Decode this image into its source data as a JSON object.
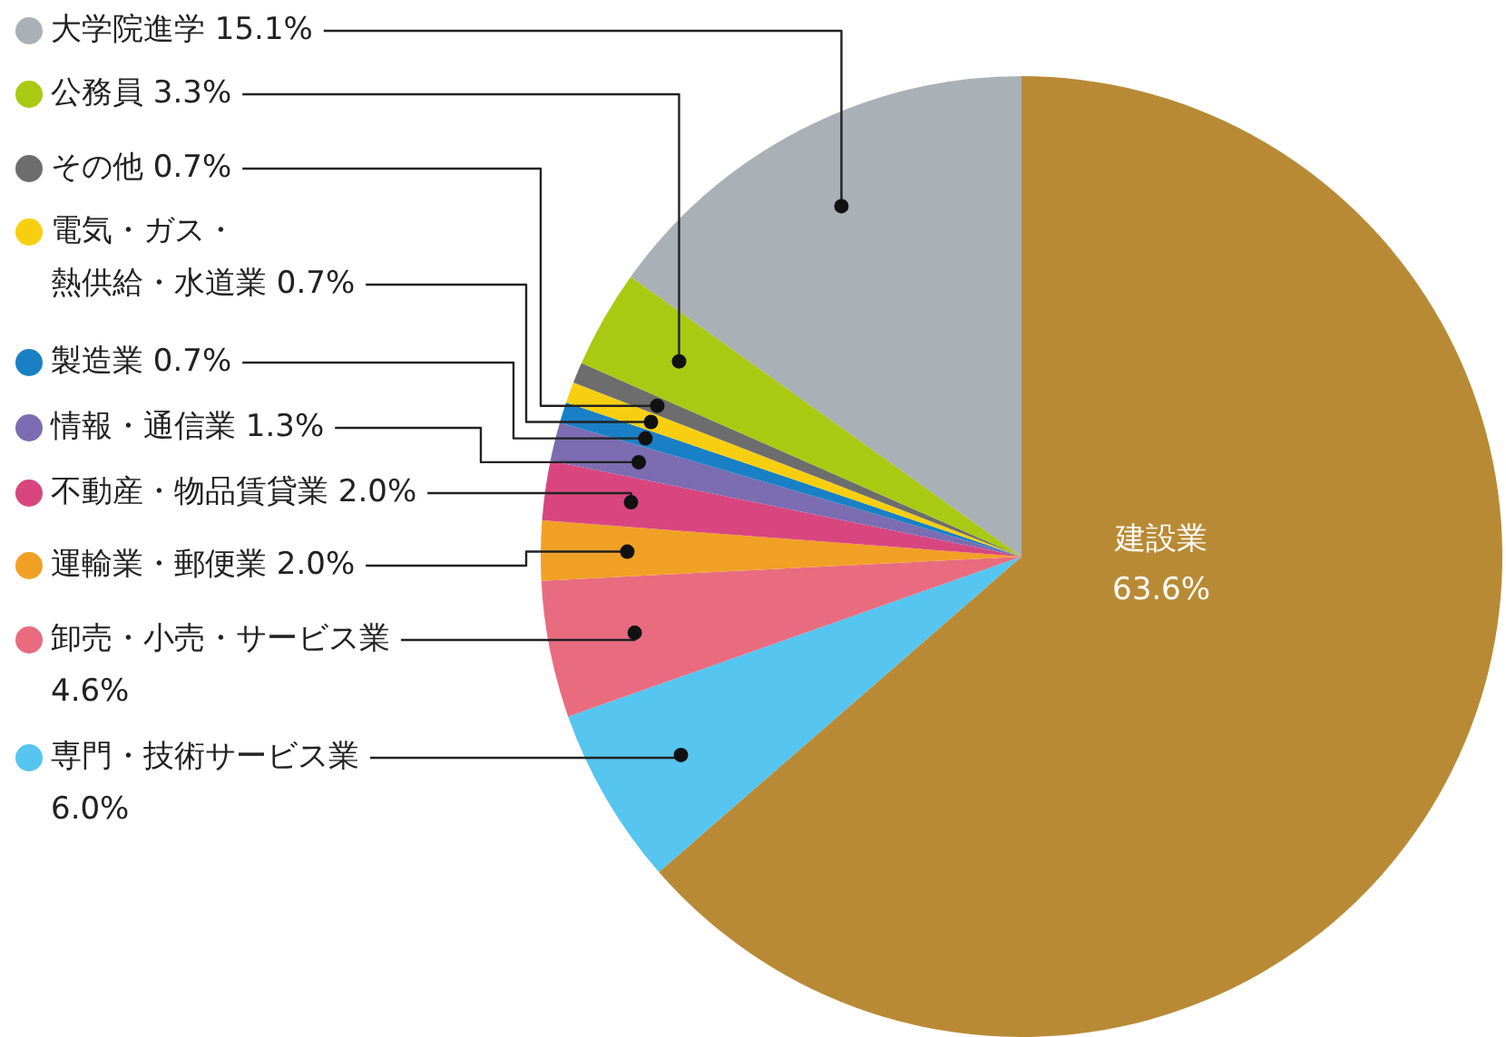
{
  "chart_data": {
    "type": "pie",
    "categories": [
      "建設業",
      "専門・技術サービス業",
      "卸売・小売・サービス業",
      "運輸業・郵便業",
      "不動産・物品賃貸業",
      "情報・通信業",
      "製造業",
      "電気・ガス・熱供給・水道業",
      "その他",
      "公務員",
      "大学院進学"
    ],
    "values": [
      63.6,
      6.0,
      4.6,
      2.0,
      2.0,
      1.3,
      0.7,
      0.7,
      0.7,
      3.3,
      15.1
    ],
    "value_labels": [
      "63.6%",
      "6.0%",
      "4.6%",
      "2.0%",
      "2.0%",
      "1.3%",
      "0.7%",
      "0.7%",
      "0.7%",
      "3.3%",
      "15.1%"
    ],
    "colors": [
      "#b98a35",
      "#56c5ef",
      "#e96b80",
      "#f0a024",
      "#d9467f",
      "#7c6cb1",
      "#1a80c5",
      "#f8cf10",
      "#6d6d6d",
      "#a9c912",
      "#a9b0b6"
    ],
    "legend": "left"
  }
}
